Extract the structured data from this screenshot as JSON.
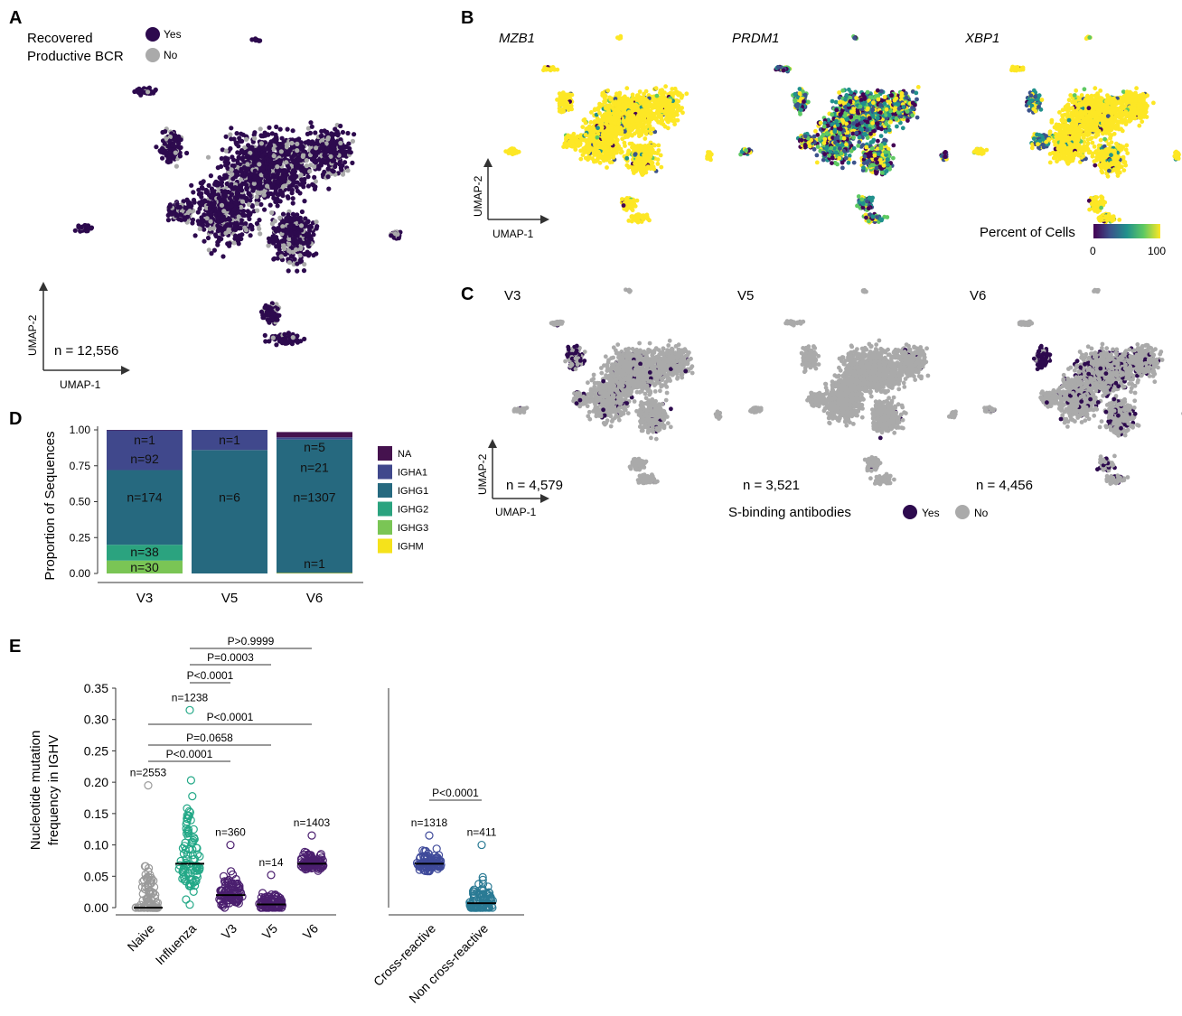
{
  "panels": {
    "A": {
      "letter": "A",
      "legend_title_1": "Recovered",
      "legend_title_2": "Productive BCR",
      "legend_yes": "Yes",
      "legend_no": "No",
      "yes_color": "#2d0a4e",
      "no_color": "#aaaaaa",
      "n_label": "n = 12,556",
      "axis_x": "UMAP-1",
      "axis_y": "UMAP-2"
    },
    "B": {
      "letter": "B",
      "genes": [
        "MZB1",
        "PRDM1",
        "XBP1"
      ],
      "axis_x": "UMAP-1",
      "axis_y": "UMAP-2",
      "colorbar_title": "Percent of Cells",
      "colorbar_min": "0",
      "colorbar_max": "100",
      "colormap": [
        "#440154",
        "#3b528b",
        "#21918c",
        "#5ec962",
        "#fde725"
      ]
    },
    "C": {
      "letter": "C",
      "titles": [
        "V3",
        "V5",
        "V6"
      ],
      "n_labels": [
        "n = 4,579",
        "n = 3,521",
        "n = 4,456"
      ],
      "axis_x": "UMAP-1",
      "axis_y": "UMAP-2",
      "legend_title": "S-binding antibodies",
      "legend_yes": "Yes",
      "legend_no": "No"
    },
    "D": {
      "letter": "D"
    },
    "E": {
      "letter": "E"
    }
  },
  "chart_data": [
    {
      "type": "bar",
      "stacked": true,
      "ylabel": "Proportion of Sequences",
      "ylim": [
        0,
        1
      ],
      "yticks": [
        "0.00",
        "0.25",
        "0.50",
        "0.75",
        "1.00"
      ],
      "categories": [
        "V3",
        "V5",
        "V6"
      ],
      "series": [
        {
          "name": "IGHM",
          "color": "#f5e21b",
          "values": [
            0.0,
            0.0,
            0.003
          ]
        },
        {
          "name": "IGHG3",
          "color": "#7ac555",
          "values": [
            0.09,
            0.0,
            0.0
          ]
        },
        {
          "name": "IGHG2",
          "color": "#2ba37f",
          "values": [
            0.11,
            0.0,
            0.0
          ]
        },
        {
          "name": "IGHG1",
          "color": "#26697f",
          "values": [
            0.52,
            0.86,
            0.93
          ]
        },
        {
          "name": "IGHA1",
          "color": "#40488c",
          "values": [
            0.277,
            0.14,
            0.015
          ]
        },
        {
          "name": "NA",
          "color": "#45124e",
          "values": [
            0.003,
            0.0,
            0.037
          ]
        }
      ],
      "annotations": [
        {
          "cat": "V3",
          "text": "n=1",
          "y": 0.93
        },
        {
          "cat": "V3",
          "text": "n=92",
          "y": 0.8
        },
        {
          "cat": "V3",
          "text": "n=174",
          "y": 0.53
        },
        {
          "cat": "V3",
          "text": "n=38",
          "y": 0.15
        },
        {
          "cat": "V3",
          "text": "n=30",
          "y": 0.045
        },
        {
          "cat": "V5",
          "text": "n=1",
          "y": 0.93
        },
        {
          "cat": "V5",
          "text": "n=6",
          "y": 0.53
        },
        {
          "cat": "V6",
          "text": "n=5",
          "y": 0.88
        },
        {
          "cat": "V6",
          "text": "n=21",
          "y": 0.74
        },
        {
          "cat": "V6",
          "text": "n=1307",
          "y": 0.53
        },
        {
          "cat": "V6",
          "text": "n=1",
          "y": 0.07
        }
      ]
    },
    {
      "type": "scatter",
      "subtype": "dot-plot",
      "ylabel_1": "Nucleotide mutation",
      "ylabel_2": "frequency in IGHV",
      "ylim": [
        0,
        0.35
      ],
      "yticks": [
        "0.00",
        "0.05",
        "0.10",
        "0.15",
        "0.20",
        "0.25",
        "0.30",
        "0.35"
      ],
      "groups": [
        {
          "name": "Naive",
          "color": "#9a9a9a",
          "n": "n=2553",
          "median": 0.0,
          "max": 0.195
        },
        {
          "name": "Influenza",
          "color": "#23a887",
          "n": "n=1238",
          "median": 0.07,
          "max": 0.315
        },
        {
          "name": "V3",
          "color": "#4b1f6f",
          "n": "n=360",
          "median": 0.02,
          "max": 0.1
        },
        {
          "name": "V5",
          "color": "#4b1f6f",
          "n": "n=14",
          "median": 0.005,
          "max": 0.052
        },
        {
          "name": "V6",
          "color": "#4b1f6f",
          "n": "n=1403",
          "median": 0.07,
          "max": 0.115
        },
        {
          "name": "Cross-reactive",
          "color": "#3f4a9a",
          "n": "n=1318",
          "median": 0.07,
          "max": 0.115
        },
        {
          "name": "Non cross-reactive",
          "color": "#2a7a94",
          "n": "n=411",
          "median": 0.007,
          "max": 0.1
        }
      ],
      "comparisons": [
        {
          "from": "Influenza",
          "to": "V6",
          "p": "P>0.9999"
        },
        {
          "from": "Influenza",
          "to": "V5",
          "p": "P=0.0003"
        },
        {
          "from": "Influenza",
          "to": "V3",
          "p": "P<0.0001"
        },
        {
          "from": "Naive",
          "to": "V6",
          "p": "P<0.0001"
        },
        {
          "from": "Naive",
          "to": "V5",
          "p": "P=0.0658"
        },
        {
          "from": "Naive",
          "to": "V3",
          "p": "P<0.0001"
        },
        {
          "from": "Cross-reactive",
          "to": "Non cross-reactive",
          "p": "P<0.0001"
        }
      ]
    }
  ]
}
